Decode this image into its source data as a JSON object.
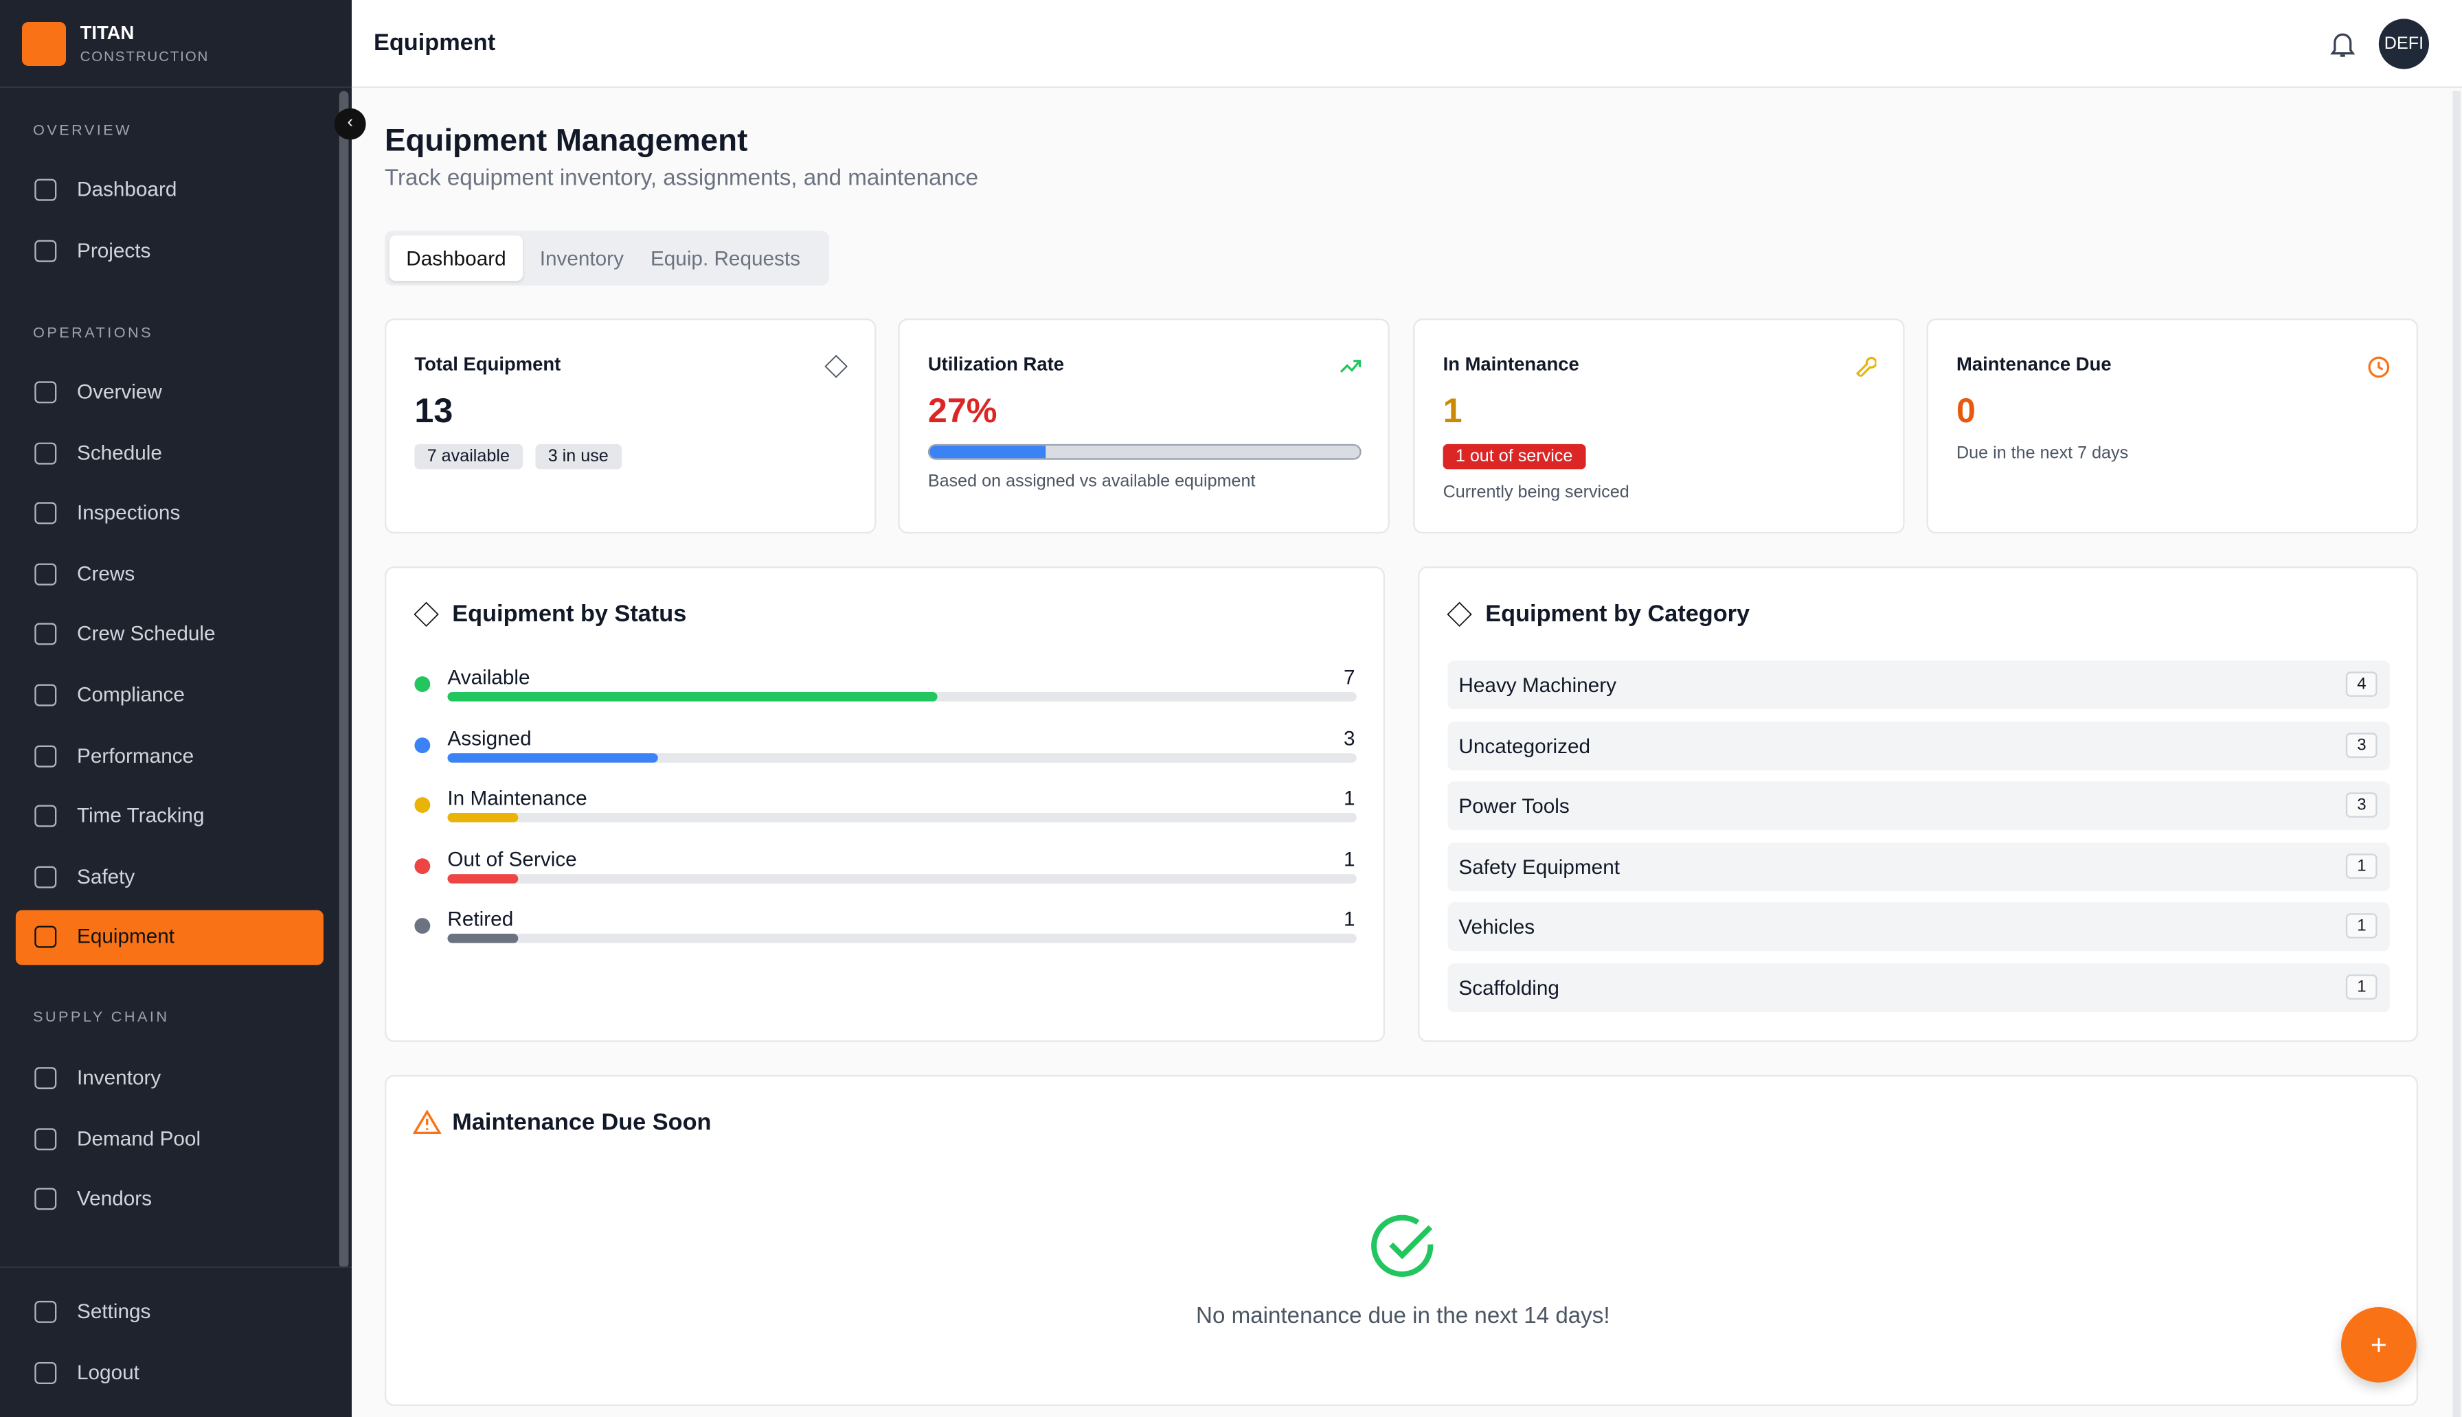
{
  "brand": {
    "name": "TITAN",
    "sub": "CONSTRUCTION"
  },
  "sidebar": {
    "sections": [
      {
        "title": "OVERVIEW",
        "items": [
          {
            "label": "Dashboard"
          },
          {
            "label": "Projects"
          }
        ]
      },
      {
        "title": "OPERATIONS",
        "items": [
          {
            "label": "Overview"
          },
          {
            "label": "Schedule"
          },
          {
            "label": "Inspections"
          },
          {
            "label": "Crews"
          },
          {
            "label": "Crew Schedule"
          },
          {
            "label": "Compliance"
          },
          {
            "label": "Performance"
          },
          {
            "label": "Time Tracking"
          },
          {
            "label": "Safety"
          },
          {
            "label": "Equipment",
            "active": true
          }
        ]
      },
      {
        "title": "SUPPLY CHAIN",
        "items": [
          {
            "label": "Inventory"
          },
          {
            "label": "Demand Pool"
          },
          {
            "label": "Vendors"
          }
        ]
      }
    ],
    "footer": [
      "Settings",
      "Logout"
    ]
  },
  "header": {
    "title": "Equipment",
    "avatar": "DEFI"
  },
  "page": {
    "title": "Equipment Management",
    "subtitle": "Track equipment inventory, assignments, and maintenance",
    "tabs": [
      {
        "label": "Dashboard",
        "active": true
      },
      {
        "label": "Inventory"
      },
      {
        "label": "Equip. Requests"
      }
    ]
  },
  "stats": {
    "total": {
      "title": "Total Equipment",
      "value": 13,
      "badges": [
        "7 available",
        "3 in use"
      ]
    },
    "utilization": {
      "title": "Utilization Rate",
      "value": 27,
      "label": "27%",
      "note": "Based on assigned vs available equipment"
    },
    "maintenance": {
      "title": "In Maintenance",
      "value": 1,
      "badge": "1 out of service",
      "note": "Currently being serviced"
    },
    "due": {
      "title": "Maintenance Due",
      "value": 0,
      "note": "Due in the next 7 days"
    }
  },
  "status": {
    "title": "Equipment by Status",
    "items": [
      {
        "label": "Available",
        "value": 7,
        "color": "#22c55e"
      },
      {
        "label": "Assigned",
        "value": 3,
        "color": "#3b82f6"
      },
      {
        "label": "In Maintenance",
        "value": 1,
        "color": "#eab308"
      },
      {
        "label": "Out of Service",
        "value": 1,
        "color": "#ef4444"
      },
      {
        "label": "Retired",
        "value": 1,
        "color": "#6b7280"
      }
    ]
  },
  "category": {
    "title": "Equipment by Category",
    "items": [
      {
        "label": "Heavy Machinery",
        "value": 4
      },
      {
        "label": "Uncategorized",
        "value": 3
      },
      {
        "label": "Power Tools",
        "value": 3
      },
      {
        "label": "Safety Equipment",
        "value": 1
      },
      {
        "label": "Vehicles",
        "value": 1
      },
      {
        "label": "Scaffolding",
        "value": 1
      }
    ]
  },
  "maintenance_due": {
    "title": "Maintenance Due Soon",
    "empty": "No maintenance due in the next 14 days!"
  },
  "fab": "+"
}
